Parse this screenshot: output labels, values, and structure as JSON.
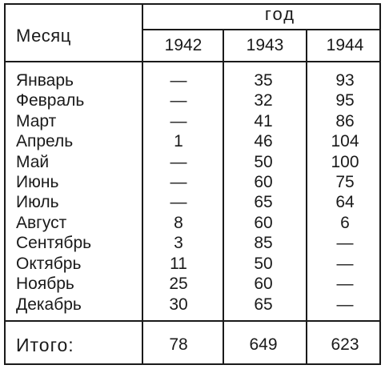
{
  "header": {
    "month_label": "Месяц",
    "year_label": "год",
    "years": [
      "1942",
      "1943",
      "1944"
    ]
  },
  "rows": [
    {
      "month": "Январь",
      "values": [
        "—",
        "35",
        "93"
      ]
    },
    {
      "month": "Февраль",
      "values": [
        "—",
        "32",
        "95"
      ]
    },
    {
      "month": "Март",
      "values": [
        "—",
        "41",
        "86"
      ]
    },
    {
      "month": "Апрель",
      "values": [
        "1",
        "46",
        "104"
      ]
    },
    {
      "month": "Май",
      "values": [
        "—",
        "50",
        "100"
      ]
    },
    {
      "month": "Июнь",
      "values": [
        "—",
        "60",
        "75"
      ]
    },
    {
      "month": "Июль",
      "values": [
        "—",
        "65",
        "64"
      ]
    },
    {
      "month": "Август",
      "values": [
        "8",
        "60",
        "6"
      ]
    },
    {
      "month": "Сентябрь",
      "values": [
        "3",
        "85",
        "—"
      ]
    },
    {
      "month": "Октябрь",
      "values": [
        "11",
        "50",
        "—"
      ]
    },
    {
      "month": "Ноябрь",
      "values": [
        "25",
        "60",
        "—"
      ]
    },
    {
      "month": "Декабрь",
      "values": [
        "30",
        "65",
        "—"
      ]
    }
  ],
  "total": {
    "label": "Итого:",
    "values": [
      "78",
      "649",
      "623"
    ]
  }
}
